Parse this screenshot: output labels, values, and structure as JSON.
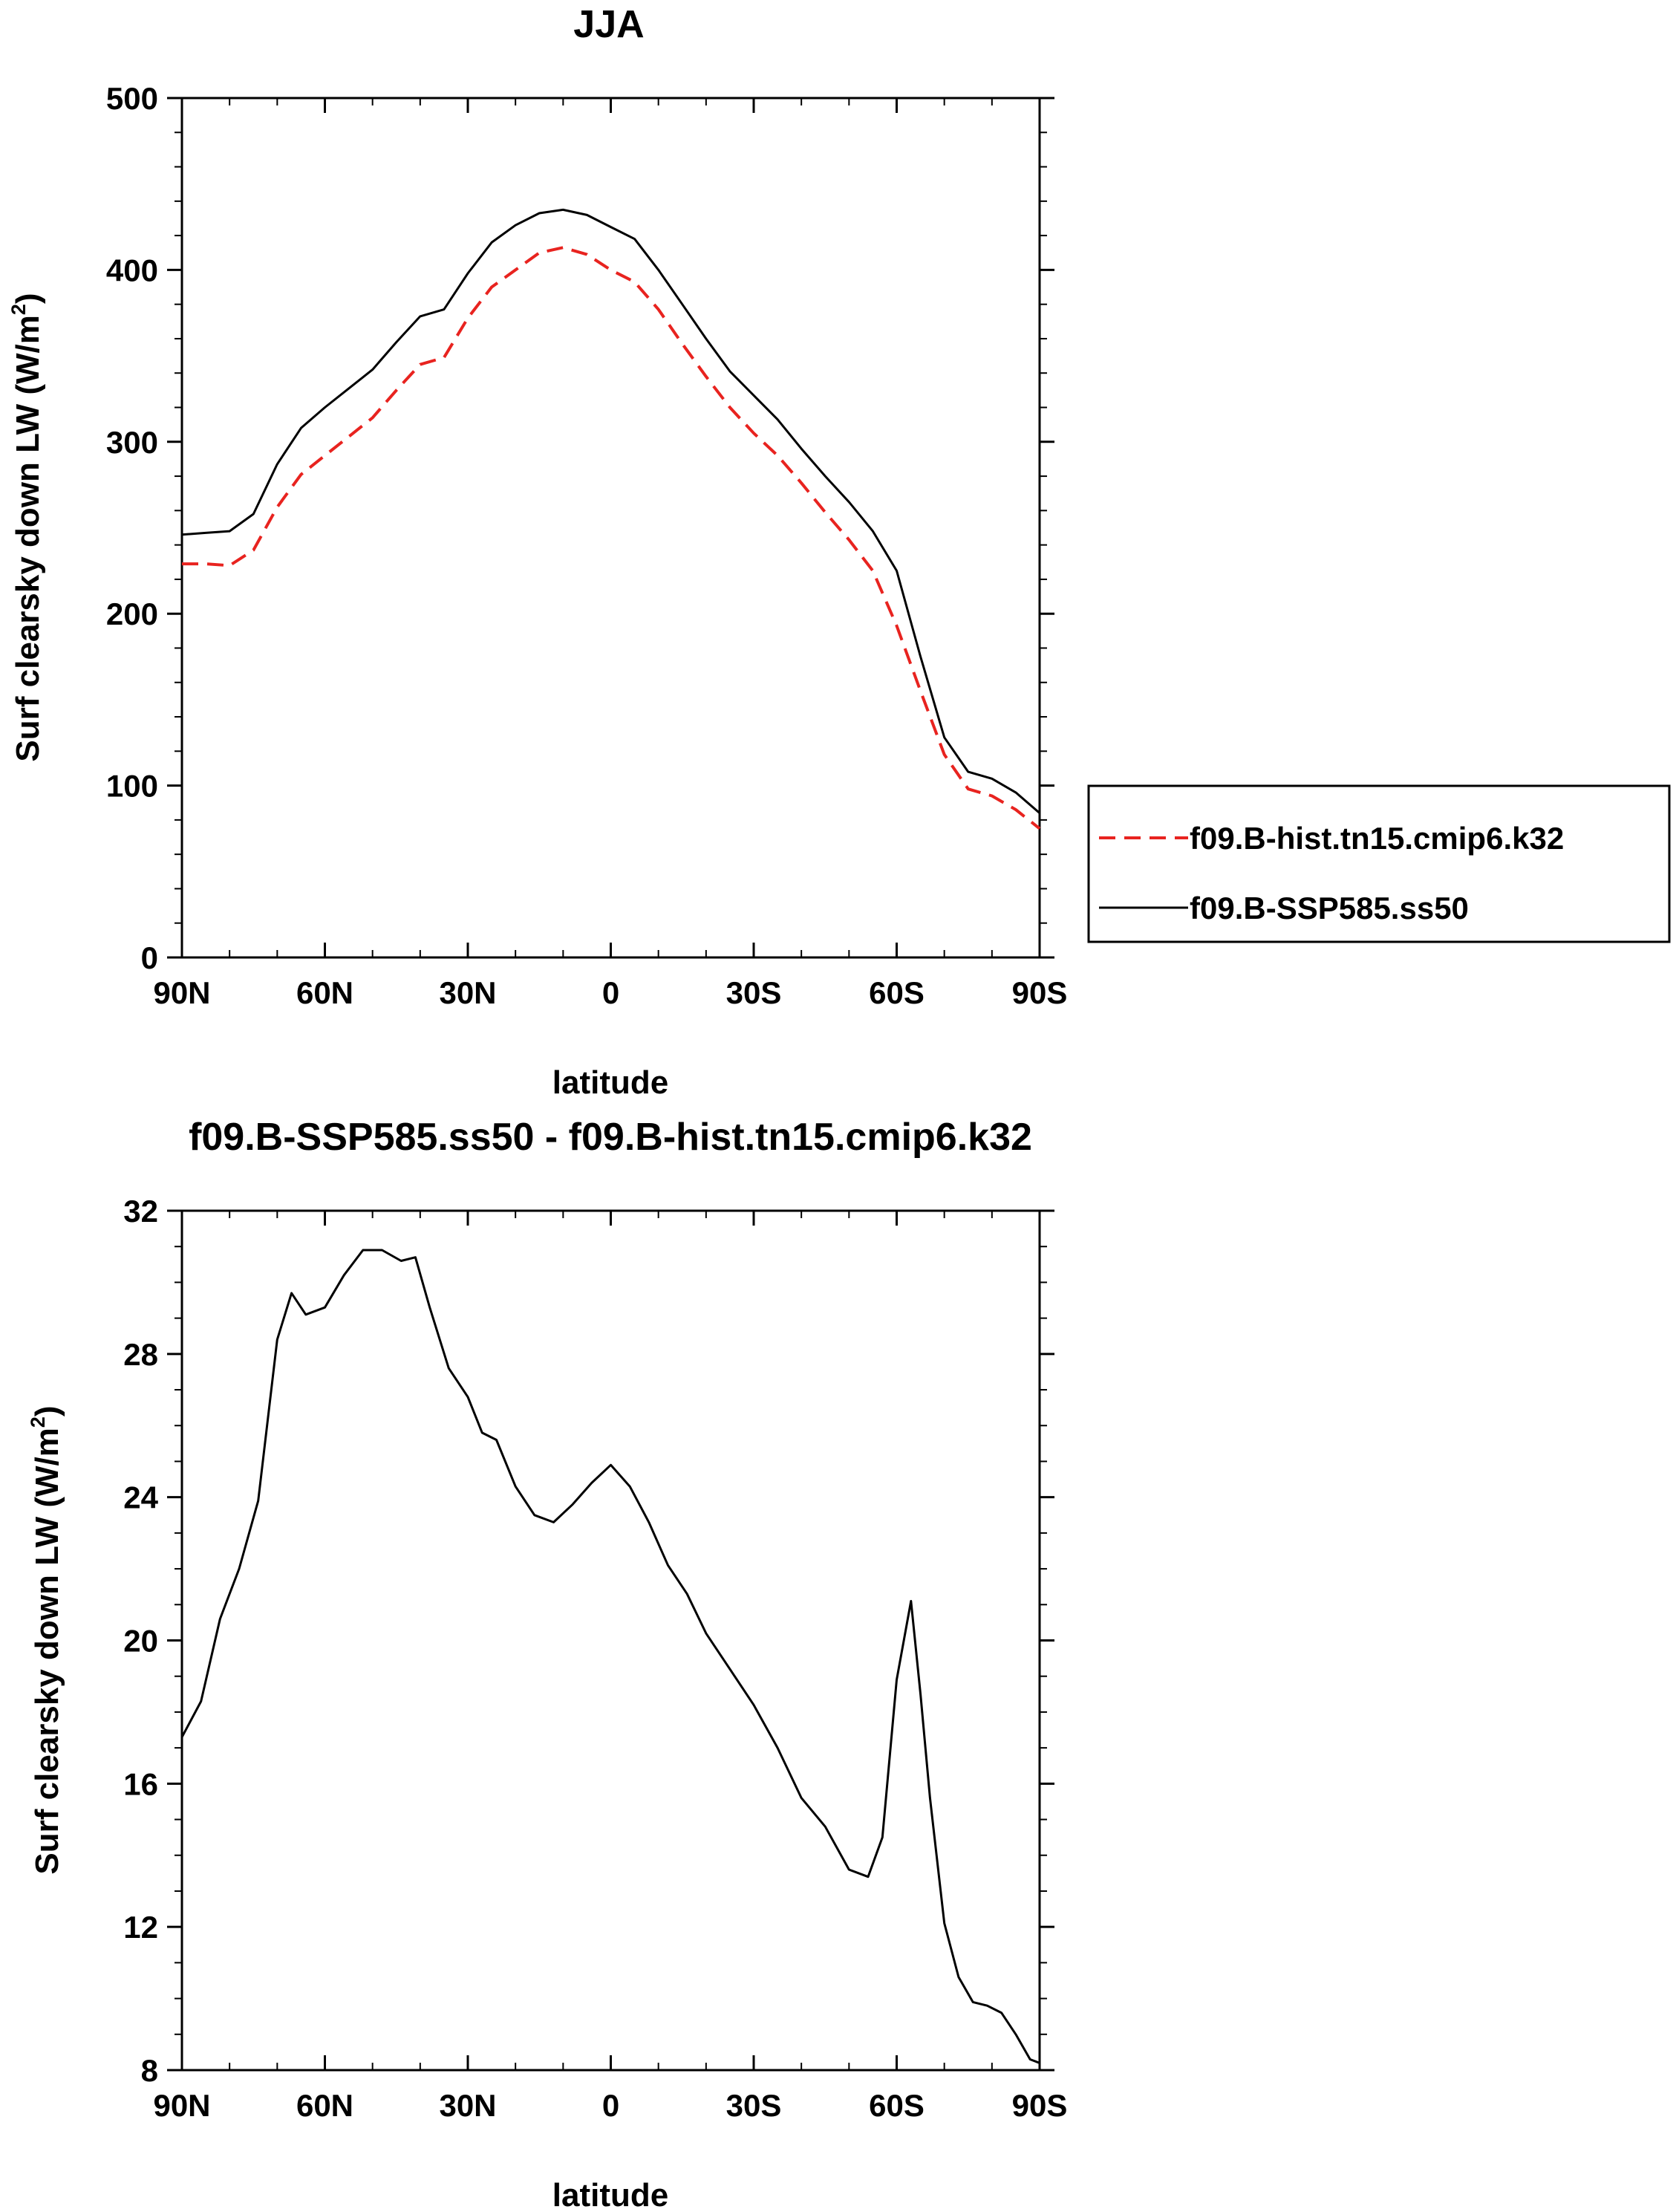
{
  "chart_data": [
    {
      "type": "line",
      "title": "JJA",
      "xlabel": "latitude",
      "ylabel": "Surf clearsky down LW (W/m",
      "ylabel_sup": "2",
      "ylabel_end": ")",
      "xlim": [
        90,
        -90
      ],
      "ylim": [
        0,
        500
      ],
      "xticks": [
        90,
        60,
        30,
        0,
        -30,
        -60,
        -90
      ],
      "xtick_labels": [
        "90N",
        "60N",
        "30N",
        "0",
        "30S",
        "60S",
        "90S"
      ],
      "yticks": [
        0,
        100,
        200,
        300,
        400,
        500
      ],
      "ytick_labels": [
        "0",
        "100",
        "200",
        "300",
        "400",
        "500"
      ],
      "x": [
        90,
        85,
        80,
        75,
        70,
        65,
        60,
        55,
        50,
        45,
        40,
        35,
        30,
        25,
        20,
        15,
        10,
        5,
        0,
        -5,
        -10,
        -15,
        -20,
        -25,
        -30,
        -35,
        -40,
        -45,
        -50,
        -55,
        -60,
        -65,
        -70,
        -75,
        -80,
        -85,
        -90
      ],
      "legend_position": "right",
      "series": [
        {
          "name": "f09.B-hist.tn15.cmip6.k32",
          "color": "#e8231f",
          "dash": "dashed",
          "values": [
            229,
            229,
            228,
            237,
            262,
            281,
            292,
            303,
            314,
            330,
            345,
            349,
            372,
            390,
            400,
            410,
            413,
            409,
            400,
            393,
            377,
            357,
            338,
            320,
            305,
            292,
            276,
            259,
            243,
            225,
            193,
            155,
            118,
            98,
            94,
            86,
            75
          ]
        },
        {
          "name": "f09.B-SSP585.ss50",
          "color": "#000000",
          "dash": "solid",
          "values": [
            246,
            247,
            248,
            258,
            287,
            308,
            320,
            331,
            342,
            358,
            373,
            377,
            398,
            416,
            426,
            433,
            435,
            432,
            425,
            418,
            400,
            380,
            360,
            341,
            327,
            313,
            296,
            280,
            265,
            248,
            225,
            175,
            128,
            108,
            104,
            96,
            84
          ]
        }
      ]
    },
    {
      "type": "line",
      "title": "f09.B-SSP585.ss50 - f09.B-hist.tn15.cmip6.k32",
      "xlabel": "latitude",
      "ylabel": "Surf clearsky down LW (W/m",
      "ylabel_sup": "2",
      "ylabel_end": ")",
      "xlim": [
        90,
        -90
      ],
      "ylim": [
        8,
        32
      ],
      "xticks": [
        90,
        60,
        30,
        0,
        -30,
        -60,
        -90
      ],
      "xtick_labels": [
        "90N",
        "60N",
        "30N",
        "0",
        "30S",
        "60S",
        "90S"
      ],
      "yticks": [
        8,
        12,
        16,
        20,
        24,
        28,
        32
      ],
      "ytick_labels": [
        "8",
        "12",
        "16",
        "20",
        "24",
        "28",
        "32"
      ],
      "x": [
        90,
        86,
        82,
        78,
        74,
        70,
        67,
        64,
        60,
        56,
        52,
        48,
        44,
        41,
        38,
        34,
        30,
        27,
        24,
        20,
        16,
        12,
        8,
        4,
        0,
        -4,
        -8,
        -12,
        -16,
        -20,
        -25,
        -30,
        -35,
        -40,
        -45,
        -50,
        -54,
        -57,
        -60,
        -63,
        -65,
        -67,
        -70,
        -73,
        -76,
        -79,
        -82,
        -85,
        -88,
        -90
      ],
      "series": [
        {
          "name": "f09.B-SSP585.ss50 - f09.B-hist.tn15.cmip6.k32",
          "color": "#000000",
          "dash": "solid",
          "values": [
            17.3,
            18.3,
            20.6,
            22.0,
            23.9,
            28.4,
            29.7,
            29.1,
            29.3,
            30.2,
            30.9,
            30.9,
            30.6,
            30.7,
            29.3,
            27.6,
            26.8,
            25.8,
            25.6,
            24.3,
            23.5,
            23.3,
            23.8,
            24.4,
            24.9,
            24.3,
            23.3,
            22.1,
            21.3,
            20.2,
            19.2,
            18.2,
            17.0,
            15.6,
            14.8,
            13.6,
            13.4,
            14.5,
            18.9,
            21.1,
            18.5,
            15.6,
            12.1,
            10.6,
            9.9,
            9.8,
            9.6,
            9.0,
            8.3,
            8.2
          ]
        }
      ]
    }
  ]
}
